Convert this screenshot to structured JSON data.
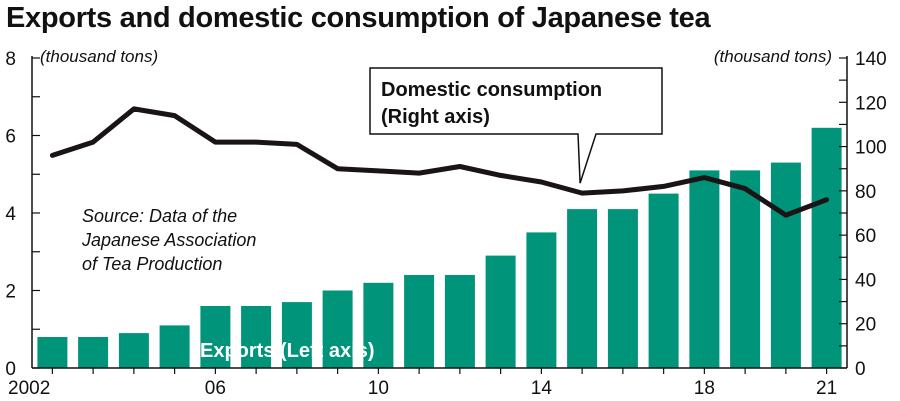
{
  "chart_data": {
    "type": "bar+line",
    "title": "Exports and domestic consumption of Japanese tea",
    "categories": [
      "2002",
      "2003",
      "2004",
      "2005",
      "2006",
      "2007",
      "2008",
      "2009",
      "2010",
      "2011",
      "2012",
      "2013",
      "2014",
      "2015",
      "2016",
      "2017",
      "2018",
      "2019",
      "2020",
      "2021"
    ],
    "x_tick_labels": [
      {
        "category": "2002",
        "label": "2002"
      },
      {
        "category": "2006",
        "label": "06"
      },
      {
        "category": "2010",
        "label": "10"
      },
      {
        "category": "2014",
        "label": "14"
      },
      {
        "category": "2018",
        "label": "18"
      },
      {
        "category": "2021",
        "label": "21"
      }
    ],
    "series": [
      {
        "name": "Exports (Left axis)",
        "type": "bar",
        "axis": "left",
        "color": "#00957a",
        "values": [
          0.8,
          0.8,
          0.9,
          1.1,
          1.6,
          1.6,
          1.7,
          2.0,
          2.2,
          2.4,
          2.4,
          2.9,
          3.5,
          4.1,
          4.1,
          4.5,
          5.1,
          5.1,
          5.3,
          6.2
        ]
      },
      {
        "name": "Domestic consumption (Right axis)",
        "name_lines": [
          "Domestic consumption",
          "(Right axis)"
        ],
        "type": "line",
        "axis": "right",
        "color": "#1a1414",
        "values": [
          96,
          102,
          117,
          114,
          102,
          102,
          101,
          90,
          89,
          88,
          91,
          87,
          84,
          79,
          80,
          82,
          86,
          81,
          69,
          76
        ]
      }
    ],
    "y_left": {
      "label": "(thousand tons)",
      "lim": [
        0,
        8
      ],
      "ticks": [
        0,
        2,
        4,
        6,
        8
      ]
    },
    "y_right": {
      "label": "(thousand tons)",
      "lim": [
        0,
        140
      ],
      "ticks": [
        0,
        20,
        40,
        60,
        80,
        100,
        120,
        140
      ]
    },
    "source_lines": [
      "Source: Data of the",
      "Japanese Association",
      "of Tea Production"
    ],
    "grid": false
  }
}
